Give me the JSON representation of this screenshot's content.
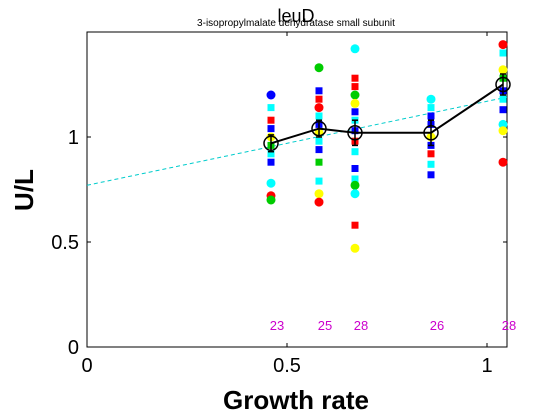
{
  "chart_data": {
    "type": "scatter",
    "title": "leuD",
    "subtitle": "3-isopropylmalate dehydratase small subunit",
    "xlabel": "Growth rate",
    "ylabel": "U/L",
    "xlim": [
      0,
      1.05
    ],
    "ylim": [
      0,
      1.5
    ],
    "xticks": [
      0,
      0.5,
      1
    ],
    "yticks": [
      0,
      0.5,
      1
    ],
    "xtick_labels": [
      "0",
      "0.5",
      "1"
    ],
    "ytick_labels": [
      "0",
      "0.5",
      "1"
    ],
    "grid": false,
    "colors": {
      "red": "#ff0000",
      "green": "#00cc00",
      "blue": "#0000ff",
      "cyan": "#00ffff",
      "yellow": "#ffff00",
      "mean_line": "#000000",
      "fit_line": "#00cccc",
      "counts": "#cc00cc"
    },
    "fit_line": {
      "intercept": 0.77,
      "slope": 0.4
    },
    "mean_series": [
      {
        "x": 0.46,
        "y": 0.97,
        "err": 0.04,
        "n": "23"
      },
      {
        "x": 0.58,
        "y": 1.04,
        "err": 0.04,
        "n": "25"
      },
      {
        "x": 0.67,
        "y": 1.02,
        "err": 0.06,
        "n": "28"
      },
      {
        "x": 0.86,
        "y": 1.02,
        "err": 0.06,
        "n": "26"
      },
      {
        "x": 1.04,
        "y": 1.25,
        "err": 0.05,
        "n": "28"
      }
    ],
    "points": [
      {
        "x": 0.46,
        "y": 1.2,
        "color": "blue",
        "shape": "circle"
      },
      {
        "x": 0.46,
        "y": 1.14,
        "color": "cyan",
        "shape": "square"
      },
      {
        "x": 0.46,
        "y": 1.08,
        "color": "red",
        "shape": "square"
      },
      {
        "x": 0.46,
        "y": 1.04,
        "color": "blue",
        "shape": "square"
      },
      {
        "x": 0.46,
        "y": 1.0,
        "color": "yellow",
        "shape": "circle"
      },
      {
        "x": 0.46,
        "y": 0.96,
        "color": "green",
        "shape": "square"
      },
      {
        "x": 0.46,
        "y": 0.92,
        "color": "cyan",
        "shape": "square"
      },
      {
        "x": 0.46,
        "y": 0.88,
        "color": "blue",
        "shape": "square"
      },
      {
        "x": 0.46,
        "y": 0.78,
        "color": "cyan",
        "shape": "circle"
      },
      {
        "x": 0.46,
        "y": 0.72,
        "color": "red",
        "shape": "circle"
      },
      {
        "x": 0.46,
        "y": 0.7,
        "color": "green",
        "shape": "circle"
      },
      {
        "x": 0.58,
        "y": 1.33,
        "color": "green",
        "shape": "circle"
      },
      {
        "x": 0.58,
        "y": 1.22,
        "color": "blue",
        "shape": "square"
      },
      {
        "x": 0.58,
        "y": 1.18,
        "color": "red",
        "shape": "square"
      },
      {
        "x": 0.58,
        "y": 1.14,
        "color": "red",
        "shape": "circle"
      },
      {
        "x": 0.58,
        "y": 1.1,
        "color": "cyan",
        "shape": "square"
      },
      {
        "x": 0.58,
        "y": 1.06,
        "color": "blue",
        "shape": "square"
      },
      {
        "x": 0.58,
        "y": 1.02,
        "color": "yellow",
        "shape": "circle"
      },
      {
        "x": 0.58,
        "y": 0.98,
        "color": "cyan",
        "shape": "square"
      },
      {
        "x": 0.58,
        "y": 0.94,
        "color": "blue",
        "shape": "square"
      },
      {
        "x": 0.58,
        "y": 0.88,
        "color": "green",
        "shape": "square"
      },
      {
        "x": 0.58,
        "y": 0.79,
        "color": "cyan",
        "shape": "square"
      },
      {
        "x": 0.58,
        "y": 0.73,
        "color": "yellow",
        "shape": "circle"
      },
      {
        "x": 0.58,
        "y": 0.69,
        "color": "red",
        "shape": "circle"
      },
      {
        "x": 0.67,
        "y": 1.42,
        "color": "cyan",
        "shape": "circle"
      },
      {
        "x": 0.67,
        "y": 1.28,
        "color": "red",
        "shape": "square"
      },
      {
        "x": 0.67,
        "y": 1.24,
        "color": "red",
        "shape": "square"
      },
      {
        "x": 0.67,
        "y": 1.2,
        "color": "green",
        "shape": "circle"
      },
      {
        "x": 0.67,
        "y": 1.16,
        "color": "yellow",
        "shape": "circle"
      },
      {
        "x": 0.67,
        "y": 1.12,
        "color": "blue",
        "shape": "square"
      },
      {
        "x": 0.67,
        "y": 1.08,
        "color": "cyan",
        "shape": "square"
      },
      {
        "x": 0.67,
        "y": 1.03,
        "color": "blue",
        "shape": "square"
      },
      {
        "x": 0.67,
        "y": 0.98,
        "color": "red",
        "shape": "square"
      },
      {
        "x": 0.67,
        "y": 0.93,
        "color": "cyan",
        "shape": "square"
      },
      {
        "x": 0.67,
        "y": 0.85,
        "color": "blue",
        "shape": "square"
      },
      {
        "x": 0.67,
        "y": 0.8,
        "color": "cyan",
        "shape": "square"
      },
      {
        "x": 0.67,
        "y": 0.77,
        "color": "green",
        "shape": "circle"
      },
      {
        "x": 0.67,
        "y": 0.73,
        "color": "cyan",
        "shape": "circle"
      },
      {
        "x": 0.67,
        "y": 0.58,
        "color": "red",
        "shape": "square"
      },
      {
        "x": 0.67,
        "y": 0.47,
        "color": "yellow",
        "shape": "circle"
      },
      {
        "x": 0.86,
        "y": 1.18,
        "color": "cyan",
        "shape": "circle"
      },
      {
        "x": 0.86,
        "y": 1.14,
        "color": "cyan",
        "shape": "square"
      },
      {
        "x": 0.86,
        "y": 1.1,
        "color": "blue",
        "shape": "square"
      },
      {
        "x": 0.86,
        "y": 1.06,
        "color": "blue",
        "shape": "square"
      },
      {
        "x": 0.86,
        "y": 1.0,
        "color": "yellow",
        "shape": "circle"
      },
      {
        "x": 0.86,
        "y": 0.96,
        "color": "blue",
        "shape": "square"
      },
      {
        "x": 0.86,
        "y": 0.92,
        "color": "red",
        "shape": "square"
      },
      {
        "x": 0.86,
        "y": 0.87,
        "color": "cyan",
        "shape": "square"
      },
      {
        "x": 0.86,
        "y": 0.82,
        "color": "blue",
        "shape": "square"
      },
      {
        "x": 1.04,
        "y": 1.44,
        "color": "red",
        "shape": "circle"
      },
      {
        "x": 1.04,
        "y": 1.4,
        "color": "cyan",
        "shape": "square"
      },
      {
        "x": 1.04,
        "y": 1.32,
        "color": "yellow",
        "shape": "circle"
      },
      {
        "x": 1.04,
        "y": 1.28,
        "color": "green",
        "shape": "square"
      },
      {
        "x": 1.04,
        "y": 1.22,
        "color": "blue",
        "shape": "square"
      },
      {
        "x": 1.04,
        "y": 1.18,
        "color": "cyan",
        "shape": "square"
      },
      {
        "x": 1.04,
        "y": 1.13,
        "color": "blue",
        "shape": "square"
      },
      {
        "x": 1.04,
        "y": 1.06,
        "color": "cyan",
        "shape": "circle"
      },
      {
        "x": 1.04,
        "y": 1.03,
        "color": "yellow",
        "shape": "circle"
      },
      {
        "x": 1.04,
        "y": 0.88,
        "color": "red",
        "shape": "circle"
      }
    ]
  }
}
